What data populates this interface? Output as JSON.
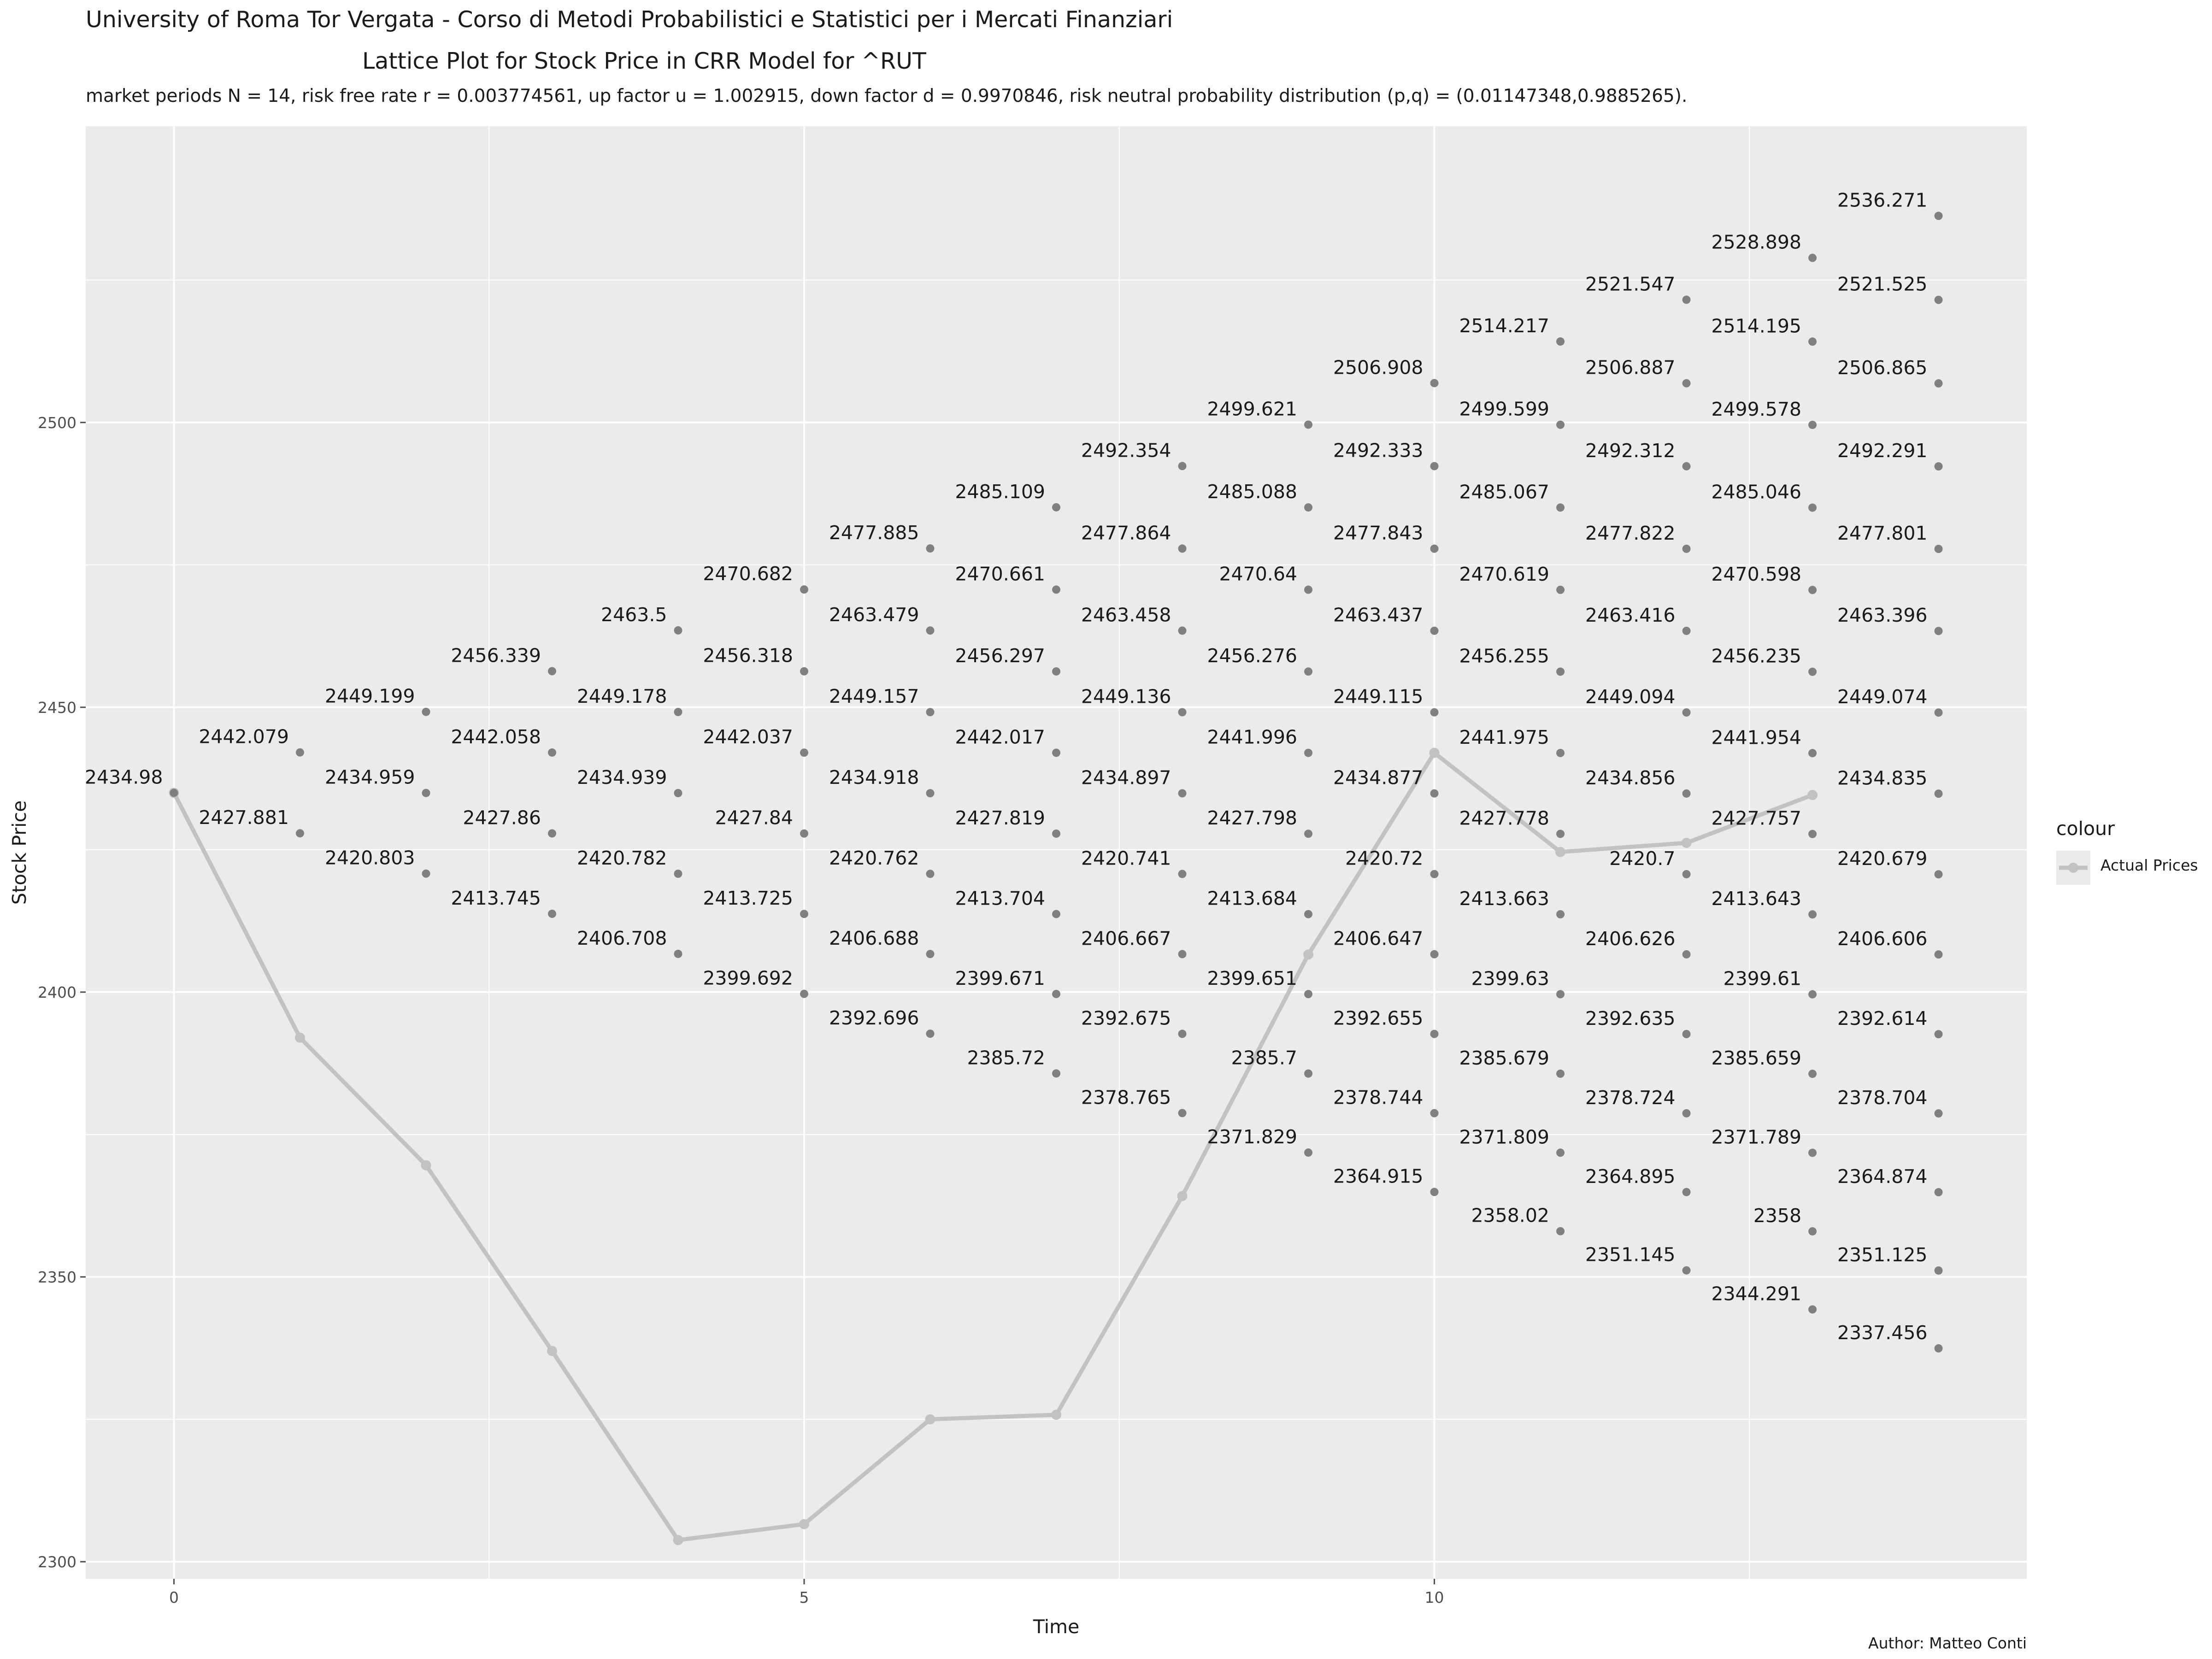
{
  "header": {
    "title": "University of Roma Tor Vergata - Corso di Metodi Probabilistici e Statistici per i Mercati Finanziari",
    "subtitle": "Lattice Plot for Stock Price in CRR Model for  ^RUT",
    "subtitle2": "market periods N = 14, risk free rate r = 0.003774561, up factor u = 1.002915, down factor d = 0.9970846, risk neutral probability distribution (p,q) = (0.01147348,0.9885265).",
    "caption": "Author: Matteo Conti"
  },
  "legend": {
    "title": "colour",
    "label": "Actual Prices"
  },
  "colors": {
    "panel": "#ebebeb",
    "grid": "#ffffff",
    "lattice_point": "#808080",
    "actual_line": "#c2c2c2",
    "text": "#1a1a1a",
    "tick": "#4d4d4d"
  },
  "chart_data": {
    "type": "scatter",
    "xlabel": "Time",
    "ylabel": "Stock Price",
    "xlim": [
      -0.7,
      14.7
    ],
    "ylim": [
      2297,
      2552
    ],
    "x_ticks": [
      0,
      5,
      10
    ],
    "y_ticks": [
      2300,
      2350,
      2400,
      2450,
      2500
    ],
    "grid": true,
    "legend_position": "right",
    "lattice": [
      [
        2434.98
      ],
      [
        2442.079,
        2427.881
      ],
      [
        2449.199,
        2434.959,
        2420.803
      ],
      [
        2456.339,
        2442.058,
        2427.86,
        2413.745
      ],
      [
        2463.5,
        2449.178,
        2434.939,
        2420.782,
        2406.708
      ],
      [
        2470.682,
        2456.318,
        2442.037,
        2427.84,
        2413.725,
        2399.692
      ],
      [
        2477.885,
        2463.479,
        2449.157,
        2434.918,
        2420.762,
        2406.688,
        2392.696
      ],
      [
        2485.109,
        2470.661,
        2456.297,
        2442.017,
        2427.819,
        2413.704,
        2399.671,
        2385.72
      ],
      [
        2492.354,
        2477.864,
        2463.458,
        2449.136,
        2434.897,
        2420.741,
        2406.667,
        2392.675,
        2378.765
      ],
      [
        2499.621,
        2485.088,
        2470.64,
        2456.276,
        2441.996,
        2427.798,
        2413.684,
        2399.651,
        2385.7,
        2371.829
      ],
      [
        2506.908,
        2492.333,
        2477.843,
        2463.437,
        2449.115,
        2434.877,
        2420.72,
        2406.647,
        2392.655,
        2378.744,
        2364.915
      ],
      [
        2514.217,
        2499.599,
        2485.067,
        2470.619,
        2456.255,
        2441.975,
        2427.778,
        2413.663,
        2399.63,
        2385.679,
        2371.809,
        2358.02
      ],
      [
        2521.547,
        2506.887,
        2492.312,
        2477.822,
        2463.416,
        2449.094,
        2434.856,
        2420.7,
        2406.626,
        2392.635,
        2378.724,
        2364.895,
        2351.145
      ],
      [
        2528.898,
        2514.195,
        2499.578,
        2485.046,
        2470.598,
        2456.235,
        2441.954,
        2427.757,
        2413.643,
        2399.61,
        2385.659,
        2371.789,
        2358,
        2344.291
      ],
      [
        2536.271,
        2521.525,
        2506.865,
        2492.291,
        2477.801,
        2463.396,
        2449.074,
        2434.835,
        2420.679,
        2406.606,
        2392.614,
        2378.704,
        2364.874,
        2351.125,
        2337.456
      ]
    ],
    "series": [
      {
        "name": "Actual Prices",
        "x": [
          0,
          1,
          2,
          3,
          4,
          5,
          6,
          7,
          8,
          9,
          10,
          11,
          12,
          13
        ],
        "values": [
          2434.98,
          2392.0,
          2369.6,
          2337.0,
          2303.8,
          2306.6,
          2325.0,
          2325.8,
          2364.2,
          2406.6,
          2442.0,
          2424.6,
          2426.2,
          2434.6
        ]
      }
    ]
  }
}
